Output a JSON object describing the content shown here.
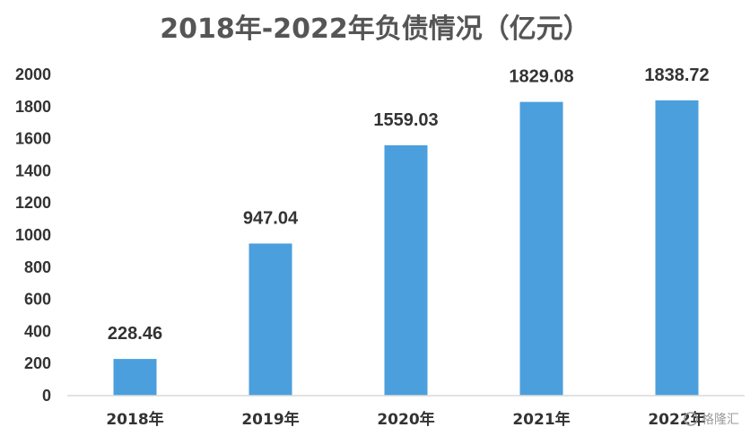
{
  "chart_data": {
    "type": "bar",
    "title": "2018年-2022年负债情况（亿元）",
    "xlabel": "",
    "ylabel": "",
    "categories": [
      "2018年",
      "2019年",
      "2020年",
      "2021年",
      "2022年"
    ],
    "values": [
      228.46,
      947.04,
      1559.03,
      1829.08,
      1838.72
    ],
    "data_labels": [
      "228.46",
      "947.04",
      "1559.03",
      "1829.08",
      "1838.72"
    ],
    "ylim": [
      0,
      2000
    ],
    "yticks": [
      "0",
      "200",
      "400",
      "600",
      "800",
      "1000",
      "1200",
      "1400",
      "1600",
      "1800",
      "2000"
    ],
    "grid": false,
    "legend": "none",
    "bar_color": "#4a9fdc",
    "axis_color": "#d9d9d9"
  },
  "watermark": {
    "text": "格隆汇"
  }
}
